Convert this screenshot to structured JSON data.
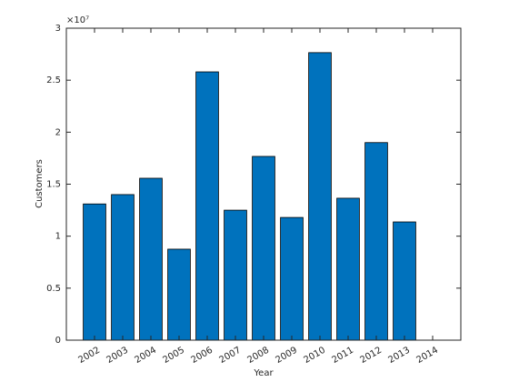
{
  "chart_data": {
    "type": "bar",
    "x": [
      2002,
      2003,
      2004,
      2005,
      2006,
      2007,
      2008,
      2009,
      2010,
      2011,
      2012,
      2013,
      2014
    ],
    "values": [
      13100000,
      14000000,
      15570000,
      8750000,
      25800000,
      12500000,
      17670000,
      11800000,
      27650000,
      13650000,
      19000000,
      11370000,
      null
    ],
    "color": "#0072bd",
    "xlim": [
      2001,
      2015
    ],
    "xticks": [
      2002,
      2003,
      2004,
      2005,
      2006,
      2007,
      2008,
      2009,
      2010,
      2011,
      2012,
      2013,
      2014
    ],
    "ylim": [
      0,
      30000000
    ],
    "yticks": [
      0,
      {
        "value": 5000000,
        "label": "0.5"
      },
      {
        "value": 10000000,
        "label": "1"
      },
      {
        "value": 15000000,
        "label": "1.5"
      },
      {
        "value": 20000000,
        "label": "2"
      },
      {
        "value": 25000000,
        "label": "2.5"
      },
      {
        "value": 30000000,
        "label": "3"
      }
    ],
    "y_exponent_label": "×10⁷",
    "xlabel": "Year",
    "ylabel": "Customers",
    "grid": false
  }
}
